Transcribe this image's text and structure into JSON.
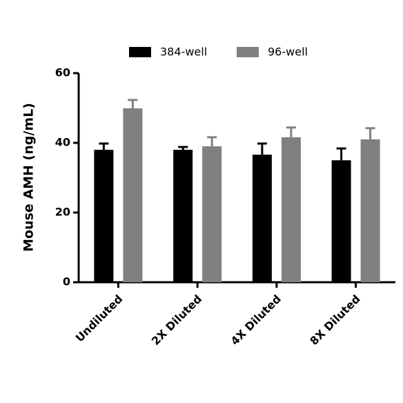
{
  "chart_data": {
    "type": "bar",
    "y_label": "Mouse AMH (ng/mL)",
    "categories": [
      "Undiluted",
      "2X Diluted",
      "4X Diluted",
      "8X Diluted"
    ],
    "series": [
      {
        "name": "384-well",
        "color": "#000000",
        "values": [
          38.0,
          38.0,
          36.6,
          35.0
        ],
        "errors": [
          1.8,
          0.8,
          3.2,
          3.4
        ]
      },
      {
        "name": "96-well",
        "color": "#808080",
        "values": [
          49.9,
          39.0,
          41.6,
          41.0
        ],
        "errors": [
          2.4,
          2.6,
          2.8,
          3.2
        ]
      }
    ],
    "ylim": [
      0,
      60
    ],
    "yticks": [
      0,
      20,
      40,
      60
    ],
    "legend": "top"
  }
}
